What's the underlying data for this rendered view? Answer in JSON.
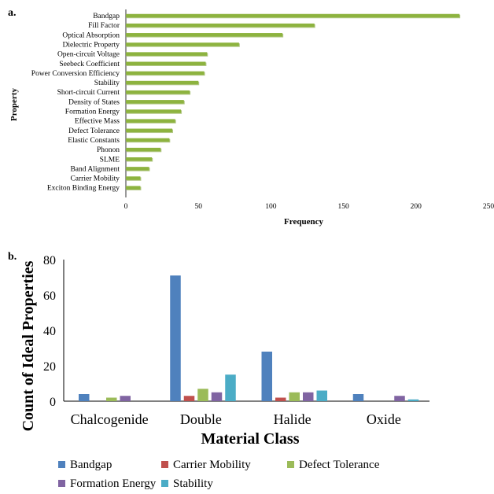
{
  "panel_a_label": "a.",
  "panel_b_label": "b.",
  "chart_data": [
    {
      "type": "bar",
      "orientation": "horizontal",
      "categories": [
        "Bandgap",
        "Fill Factor",
        "Optical Absorption",
        "Dielectric Property",
        "Open-circuit Voltage",
        "Seebeck Coefficient",
        "Power Conversion Efficiency",
        "Stability",
        "Short-circuit Current",
        "Density of States",
        "Formation Energy",
        "Effective Mass",
        "Defect Tolerance",
        "Elastic Constants",
        "Phonon",
        "SLME",
        "Band Alignment",
        "Carrier Mobility",
        "Exciton Binding Energy"
      ],
      "values": [
        230,
        130,
        108,
        78,
        56,
        55,
        54,
        50,
        44,
        40,
        38,
        34,
        32,
        30,
        24,
        18,
        16,
        10,
        10
      ],
      "xlabel": "Frequency",
      "ylabel": "Property",
      "xlim": [
        0,
        250
      ],
      "xticks": [
        0,
        50,
        100,
        150,
        200,
        250
      ],
      "bar_color": "#8db33f",
      "grid": false
    },
    {
      "type": "bar",
      "categories": [
        "Chalcogenide",
        "Double",
        "Halide",
        "Oxide"
      ],
      "series": [
        {
          "name": "Bandgap",
          "color": "#4f81bd",
          "values": [
            4,
            71,
            28,
            4
          ]
        },
        {
          "name": "Carrier Mobility",
          "color": "#c0504d",
          "values": [
            0,
            3,
            2,
            0
          ]
        },
        {
          "name": "Defect Tolerance",
          "color": "#9bbb59",
          "values": [
            2,
            7,
            5,
            0
          ]
        },
        {
          "name": "Formation Energy",
          "color": "#8064a2",
          "values": [
            3,
            5,
            5,
            3
          ]
        },
        {
          "name": "Stability",
          "color": "#4bacc6",
          "values": [
            0,
            15,
            6,
            1
          ]
        }
      ],
      "xlabel": "Material Class",
      "ylabel": "Count of Ideal Properties",
      "ylim": [
        0,
        80
      ],
      "yticks": [
        0,
        20,
        40,
        60,
        80
      ],
      "legend_position": "bottom",
      "grid": false
    }
  ]
}
